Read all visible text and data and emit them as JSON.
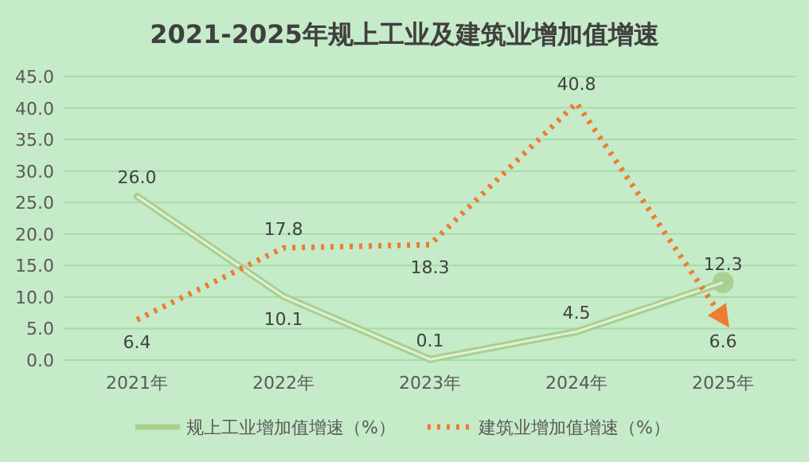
{
  "chart_data": {
    "type": "line",
    "title": "2021-2025年规上工业及建筑业增加值增速",
    "categories": [
      "2021年",
      "2022年",
      "2023年",
      "2024年",
      "2025年"
    ],
    "ylim": [
      0,
      45
    ],
    "yticks": [
      {
        "value": 0,
        "label": "0.0"
      },
      {
        "value": 5,
        "label": "5.0"
      },
      {
        "value": 10,
        "label": "10.0"
      },
      {
        "value": 15,
        "label": "15.0"
      },
      {
        "value": 20,
        "label": "20.0"
      },
      {
        "value": 25,
        "label": "25.0"
      },
      {
        "value": 30,
        "label": "30.0"
      },
      {
        "value": 35,
        "label": "35.0"
      },
      {
        "value": 40,
        "label": "40.0"
      },
      {
        "value": 45,
        "label": "45.0"
      }
    ],
    "grid": "y",
    "legend": "bottom",
    "series": [
      {
        "name": "规上工业增加值增速（%）",
        "color": "#a9d08e",
        "line_style": "solid",
        "values": [
          26.0,
          10.1,
          0.1,
          4.5,
          12.3
        ],
        "value_labels": [
          "26.0",
          "10.1",
          "0.1",
          "4.5",
          "12.3"
        ]
      },
      {
        "name": "建筑业增加值增速（%）",
        "color": "#ed7d31",
        "line_style": "dotted",
        "values": [
          6.4,
          17.8,
          18.3,
          40.8,
          6.6
        ],
        "value_labels": [
          "6.4",
          "17.8",
          "18.3",
          "40.8",
          "6.6"
        ]
      }
    ]
  }
}
